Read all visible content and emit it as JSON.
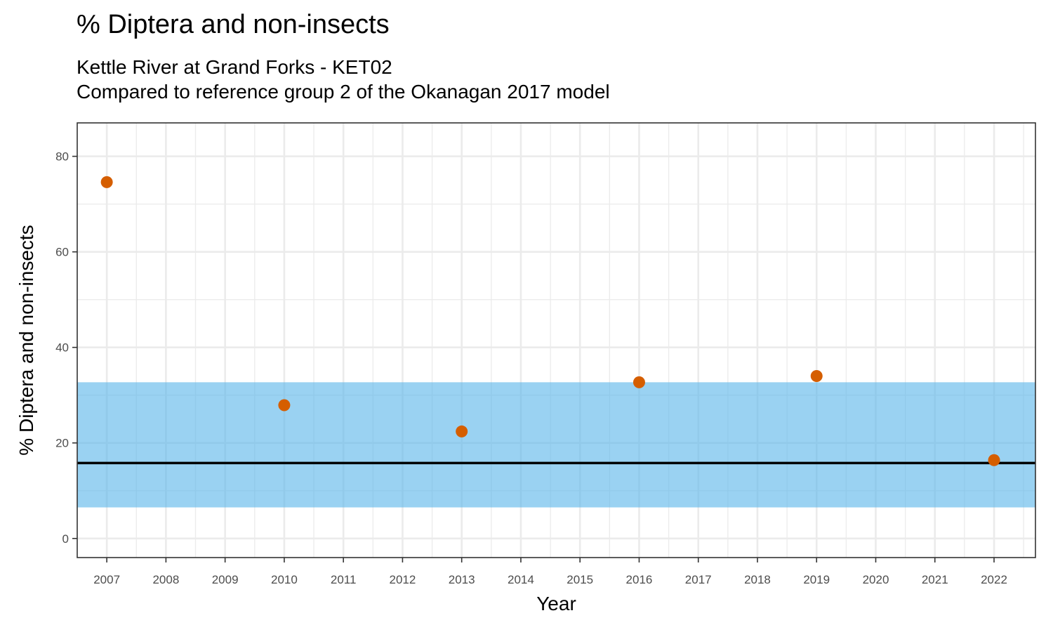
{
  "chart_data": {
    "type": "scatter",
    "title": "% Diptera and non-insects",
    "subtitle_lines": [
      "Kettle River at Grand Forks - KET02",
      "Compared to reference group 2 of the Okanagan 2017 model"
    ],
    "xlabel": "Year",
    "ylabel": "% Diptera and non-insects",
    "x_ticks": [
      "2007",
      "2008",
      "2009",
      "2010",
      "2011",
      "2012",
      "2013",
      "2014",
      "2015",
      "2016",
      "2017",
      "2018",
      "2019",
      "2020",
      "2021",
      "2022"
    ],
    "y_ticks": [
      0,
      20,
      40,
      60,
      80
    ],
    "xlim": [
      2006.5,
      2022.7
    ],
    "ylim": [
      -4,
      87
    ],
    "points": [
      {
        "x": 2007,
        "y": 74.6
      },
      {
        "x": 2010,
        "y": 27.9
      },
      {
        "x": 2013,
        "y": 22.4
      },
      {
        "x": 2016,
        "y": 32.7
      },
      {
        "x": 2019,
        "y": 34.0
      },
      {
        "x": 2022,
        "y": 16.4
      }
    ],
    "reference_band": {
      "lower": 6.5,
      "upper": 32.7
    },
    "reference_line": 15.8,
    "grid": true,
    "colors": {
      "point": "#D55E00",
      "band": "#56B4E9",
      "reference_line": "#000000",
      "grid": "#EBEBEB",
      "panel_border": "#333333"
    }
  }
}
